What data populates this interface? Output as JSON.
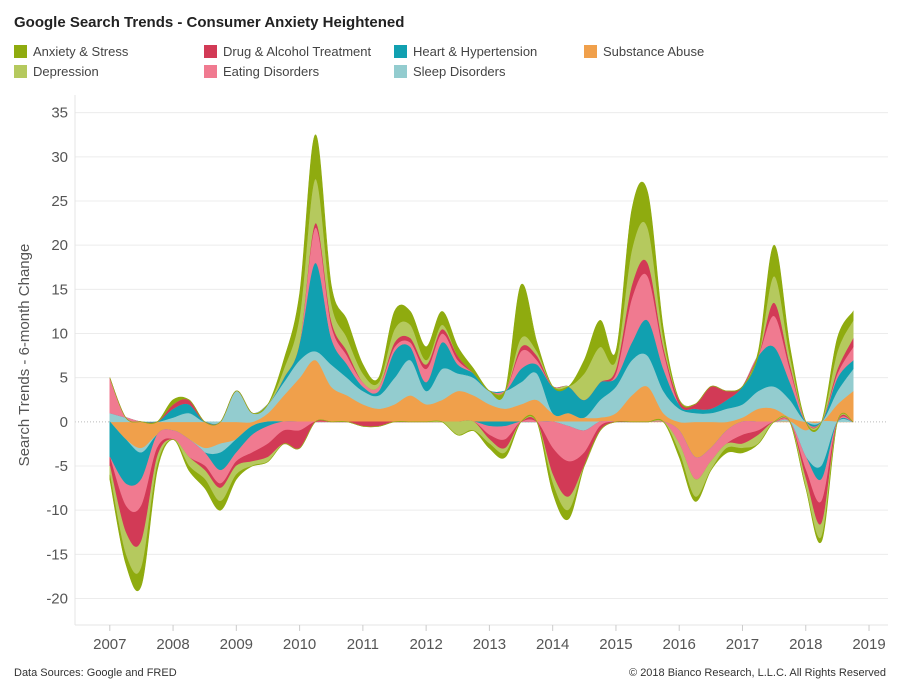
{
  "chart_data": {
    "type": "area",
    "title": "Google Search Trends - Consumer Anxiety Heightened",
    "ylabel": "Search Trends - 6-month Change",
    "xlabel": "",
    "ylim": [
      -23,
      37
    ],
    "yticks": [
      35,
      30,
      25,
      20,
      15,
      10,
      5,
      0,
      -5,
      -10,
      -15,
      -20
    ],
    "xlim": [
      2006.45,
      2019.3
    ],
    "xticks": [
      "2007",
      "2008",
      "2009",
      "2010",
      "2011",
      "2012",
      "2013",
      "2014",
      "2015",
      "2016",
      "2017",
      "2018",
      "2019"
    ],
    "grid": true,
    "legend_position": "top",
    "x": [
      2007.0,
      2007.25,
      2007.5,
      2007.75,
      2008.0,
      2008.25,
      2008.5,
      2008.75,
      2009.0,
      2009.25,
      2009.5,
      2009.75,
      2010.0,
      2010.25,
      2010.5,
      2010.75,
      2011.0,
      2011.25,
      2011.5,
      2011.75,
      2012.0,
      2012.25,
      2012.5,
      2012.75,
      2013.0,
      2013.25,
      2013.5,
      2013.75,
      2014.0,
      2014.25,
      2014.5,
      2014.75,
      2015.0,
      2015.25,
      2015.5,
      2015.75,
      2016.0,
      2016.25,
      2016.5,
      2016.75,
      2017.0,
      2017.25,
      2017.5,
      2017.75,
      2018.0,
      2018.25,
      2018.5,
      2018.75
    ],
    "series": [
      {
        "name": "Substance Abuse",
        "color": "#f0a04b",
        "values": [
          0,
          -2,
          -3,
          -1.5,
          -1,
          -2,
          -3,
          -2.5,
          -2,
          -0.5,
          1,
          3,
          5,
          7,
          4,
          3,
          2,
          1.5,
          2,
          3,
          2,
          2.5,
          3.5,
          3,
          2,
          1.5,
          2,
          2.5,
          1,
          1,
          0.5,
          0.5,
          1,
          3,
          4,
          1,
          -1,
          -4,
          -3,
          -1,
          0.5,
          1.5,
          1.5,
          0.5,
          -1,
          0,
          2,
          3.5
        ]
      },
      {
        "name": "Sleep Disorders",
        "color": "#93cccf",
        "values": [
          1,
          0.5,
          -0.5,
          0,
          0.5,
          1,
          -0.5,
          -1,
          3.5,
          1,
          1,
          1.5,
          2,
          1,
          2.5,
          2,
          1.5,
          1.5,
          3,
          4,
          1.5,
          3.5,
          2,
          2,
          1.5,
          2,
          2.5,
          3,
          0,
          -0.5,
          -1,
          2,
          3,
          4,
          3.5,
          2.5,
          1.5,
          1,
          1,
          1.5,
          1.5,
          2,
          2.5,
          2,
          -3,
          -5,
          1.5,
          2.5
        ]
      },
      {
        "name": "Heart & Hypertension",
        "color": "#11a0b0",
        "values": [
          -4,
          -5,
          -3,
          0,
          1,
          1,
          0,
          -2,
          -1.5,
          -1,
          -0.5,
          0.5,
          2,
          10,
          3,
          1.5,
          0.5,
          0.5,
          3,
          1.5,
          1,
          3,
          1,
          0.5,
          -0.5,
          -0.5,
          1.5,
          1,
          3,
          3,
          2,
          2,
          1,
          2,
          4,
          2.5,
          0.5,
          0.5,
          0.5,
          1,
          2,
          4,
          4.5,
          2,
          0,
          -1.5,
          1.5,
          1
        ]
      },
      {
        "name": "Eating Disorders",
        "color": "#f07a90",
        "values": [
          4,
          -2.5,
          -3,
          -1.5,
          -1,
          -2,
          -1.5,
          -1.5,
          -1,
          -2,
          -2,
          -1,
          -1,
          4,
          1.5,
          1,
          0.5,
          0.5,
          0.5,
          0.5,
          1.5,
          1,
          0.5,
          0,
          -1,
          -1.5,
          2,
          0.5,
          -3,
          -4,
          -2.5,
          -0.5,
          0.5,
          5,
          5,
          2,
          -1.5,
          -2.5,
          -1.5,
          -1.5,
          -1.5,
          -1,
          3.5,
          1.5,
          -1.5,
          -2.5,
          0.5,
          1.5
        ]
      },
      {
        "name": "Drug & Alcohol Treatment",
        "color": "#d23a56",
        "values": [
          -1,
          -3,
          -4,
          -1,
          0.5,
          0.5,
          -0.5,
          -0.5,
          -0.5,
          -1,
          -1.5,
          -1.5,
          -2,
          0.5,
          0.5,
          0.5,
          -0.5,
          -0.5,
          0.5,
          0.5,
          0.5,
          0.5,
          0.5,
          0,
          -0.5,
          -1,
          0.5,
          0.5,
          -3,
          -4,
          -1.5,
          -0.5,
          0.5,
          1.5,
          1.5,
          0.5,
          0.5,
          0.5,
          2.5,
          1,
          -1,
          -0.5,
          1.5,
          0.5,
          -1,
          -2.5,
          0.5,
          1
        ]
      },
      {
        "name": "Depression",
        "color": "#b5c95e",
        "values": [
          -1,
          -2.5,
          -3,
          -1,
          0,
          -1,
          -1,
          -1.5,
          -1,
          -0.5,
          -0.5,
          1,
          3,
          5,
          2,
          1.5,
          1,
          0.5,
          1.5,
          1.5,
          0.5,
          0.5,
          -1.5,
          -1,
          -0.5,
          -0.5,
          1,
          0.5,
          -1,
          -1.5,
          3,
          4,
          1,
          4,
          4,
          1,
          -1,
          -2,
          -1,
          -0.5,
          -0.5,
          -1,
          3,
          1,
          -1,
          -1.5,
          2,
          2
        ]
      },
      {
        "name": "Anxiety & Stress",
        "color": "#8fab0f",
        "values": [
          -0.5,
          -1,
          -2,
          -0.5,
          0.5,
          -0.5,
          -1,
          -1,
          -0.5,
          0,
          0,
          1,
          2.5,
          5,
          2,
          2,
          1,
          0.5,
          2,
          1.5,
          1.5,
          1.5,
          1,
          0.5,
          -0.5,
          -0.5,
          6,
          1,
          -1,
          -1,
          1.5,
          3,
          1,
          4.5,
          4,
          1,
          -0.5,
          -0.5,
          0,
          -0.5,
          -0.5,
          0.5,
          3.5,
          1,
          0,
          -0.5,
          1.5,
          1
        ]
      }
    ]
  },
  "legend": {
    "items": [
      {
        "label": "Anxiety & Stress",
        "color": "#8fab0f"
      },
      {
        "label": "Drug & Alcohol Treatment",
        "color": "#d23a56"
      },
      {
        "label": "Heart & Hypertension",
        "color": "#11a0b0"
      },
      {
        "label": "Substance Abuse",
        "color": "#f0a04b"
      },
      {
        "label": "Depression",
        "color": "#b5c95e"
      },
      {
        "label": "Eating Disorders",
        "color": "#f07a90"
      },
      {
        "label": "Sleep Disorders",
        "color": "#93cccf"
      }
    ]
  },
  "footer": {
    "source": "Data Sources: Google and FRED",
    "copyright": "© 2018 Bianco Research, L.L.C. All Rights Reserved"
  }
}
